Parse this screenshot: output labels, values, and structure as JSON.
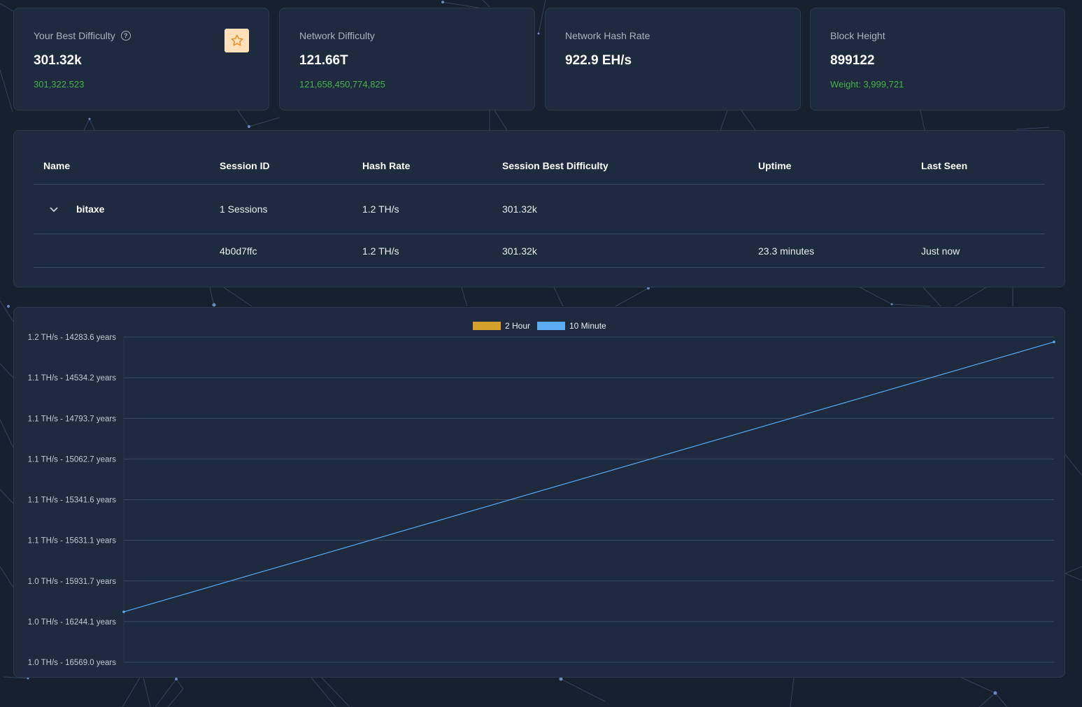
{
  "stats": [
    {
      "label": "Your Best Difficulty",
      "value": "301.32k",
      "sub": "301,322.523",
      "has_help": true,
      "has_star": true
    },
    {
      "label": "Network Difficulty",
      "value": "121.66T",
      "sub": "121,658,450,774,825"
    },
    {
      "label": "Network Hash Rate",
      "value": "922.9 EH/s",
      "sub": ""
    },
    {
      "label": "Block Height",
      "value": "899122",
      "sub": "Weight: 3,999,721"
    }
  ],
  "table": {
    "headers": [
      "Name",
      "Session ID",
      "Hash Rate",
      "Session Best Difficulty",
      "Uptime",
      "Last Seen"
    ],
    "worker": {
      "name": "bitaxe",
      "sessions": "1 Sessions",
      "hash_rate": "1.2 TH/s",
      "best_difficulty": "301.32k"
    },
    "sessions": [
      {
        "session_id": "4b0d7ffc",
        "hash_rate": "1.2 TH/s",
        "best_difficulty": "301.32k",
        "uptime": "23.3 minutes",
        "last_seen": "Just now"
      }
    ]
  },
  "colors": {
    "accent_green": "#4caf50",
    "series_2h": "#d4a02a",
    "series_10m": "#5aabf0"
  },
  "icons": {
    "help": "question-circle-icon",
    "star": "star-icon",
    "chevron": "chevron-down-icon"
  },
  "chart_data": {
    "type": "line",
    "legend": {
      "placement": "top-center",
      "entries": [
        "2 Hour",
        "10 Minute"
      ]
    },
    "y_ticks": [
      "1.2 TH/s - 14283.6 years",
      "1.1 TH/s - 14534.2 years",
      "1.1 TH/s - 14793.7 years",
      "1.1 TH/s - 15062.7 years",
      "1.1 TH/s - 15341.6 years",
      "1.1 TH/s - 15631.1 years",
      "1.0 TH/s - 15931.7 years",
      "1.0 TH/s - 16244.1 years",
      "1.0 TH/s - 16569.0 years"
    ],
    "grid": true,
    "series": [
      {
        "name": "2 Hour",
        "values": []
      },
      {
        "name": "10 Minute",
        "values": [
          1.031,
          1.197
        ]
      }
    ],
    "ylim": [
      1.0,
      1.2
    ]
  }
}
